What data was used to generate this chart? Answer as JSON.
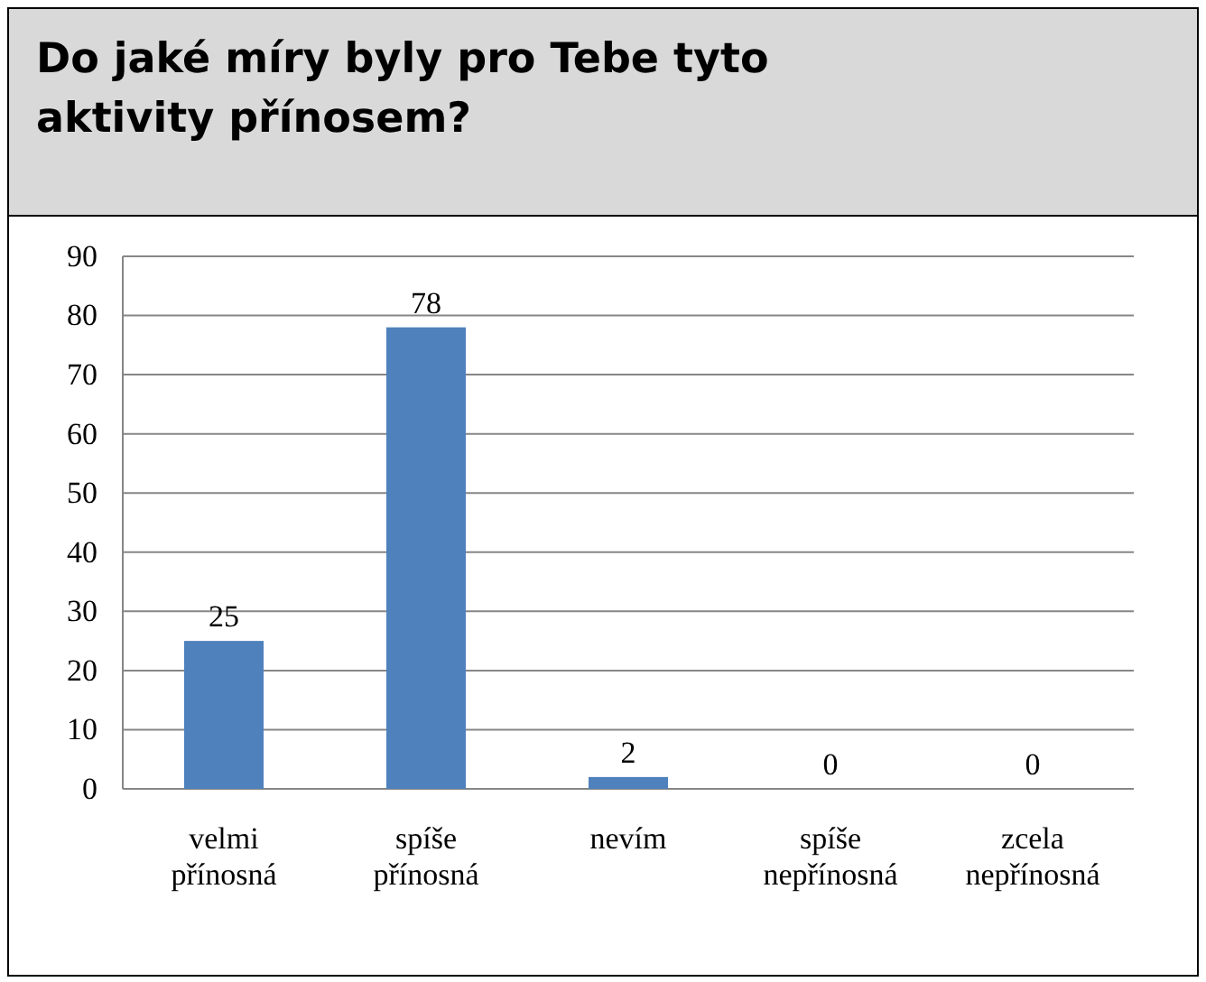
{
  "chart_data": {
    "type": "bar",
    "title": "Do jaké míry byly pro Tebe tyto aktivity přínosem?",
    "categories": [
      "velmi přínosná",
      "spíše přínosná",
      "nevím",
      "spíše nepřínosná",
      "zcela nepřínosná"
    ],
    "values": [
      25,
      78,
      2,
      0,
      0
    ],
    "color": "#4f81bd",
    "ylim": [
      0,
      90
    ],
    "yticks": [
      0,
      10,
      20,
      30,
      40,
      50,
      60,
      70,
      80,
      90
    ],
    "grid": "y",
    "data_labels": true
  }
}
